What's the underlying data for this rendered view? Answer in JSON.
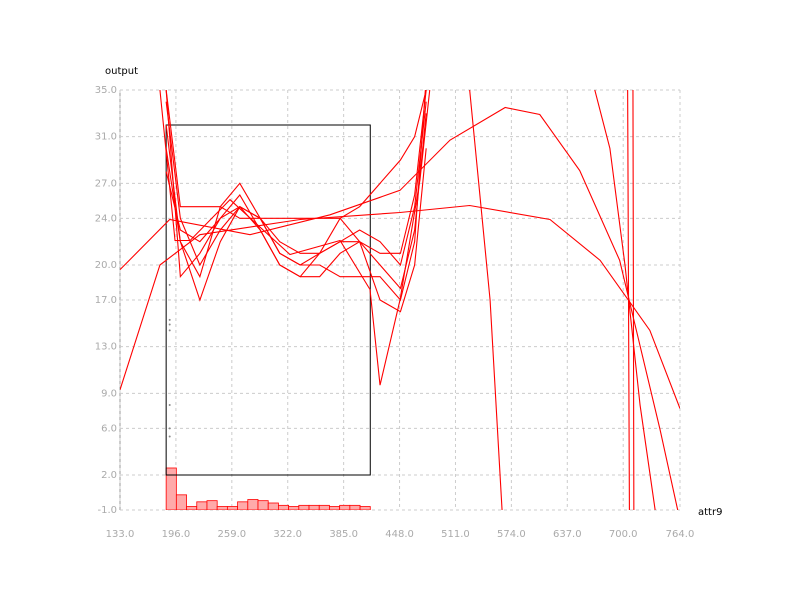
{
  "chart_data": {
    "type": "line",
    "x_label": "attr9",
    "y_label": "output",
    "xlim": [
      133,
      764
    ],
    "ylim": [
      -1,
      35
    ],
    "xticks": [
      {
        "value": 133,
        "label": "133.0"
      },
      {
        "value": 196,
        "label": "196.0"
      },
      {
        "value": 259,
        "label": "259.0"
      },
      {
        "value": 322,
        "label": "322.0"
      },
      {
        "value": 385,
        "label": "385.0"
      },
      {
        "value": 448,
        "label": "448.0"
      },
      {
        "value": 511,
        "label": "511.0"
      },
      {
        "value": 574,
        "label": "574.0"
      },
      {
        "value": 637,
        "label": "637.0"
      },
      {
        "value": 700,
        "label": "700.0"
      },
      {
        "value": 764,
        "label": "764.0"
      }
    ],
    "yticks": [
      {
        "value": -1,
        "label": "-1.0"
      },
      {
        "value": 2,
        "label": "2.0"
      },
      {
        "value": 6,
        "label": "6.0"
      },
      {
        "value": 9,
        "label": "9.0"
      },
      {
        "value": 13,
        "label": "13.0"
      },
      {
        "value": 17,
        "label": "17.0"
      },
      {
        "value": 20,
        "label": "20.0"
      },
      {
        "value": 24,
        "label": "24.0"
      },
      {
        "value": 27,
        "label": "27.0"
      },
      {
        "value": 31,
        "label": "31.0"
      },
      {
        "value": 35,
        "label": "35.0"
      }
    ],
    "grid": true,
    "line_color": "#ff0000",
    "series": [
      {
        "x": [
          133,
          178,
          223,
          336,
          448.5,
          527,
          617.5,
          674,
          730,
          764
        ],
        "values": [
          9.3,
          20.0,
          22.6,
          23.9,
          24.5,
          25.1,
          23.9,
          20.4,
          14.4,
          7.7
        ]
      },
      {
        "x": [
          133,
          189,
          279.5,
          369.6,
          448.5,
          504.8,
          567,
          606,
          651,
          696,
          741.5,
          764
        ],
        "values": [
          19.6,
          23.9,
          22.6,
          24.3,
          26.4,
          30.7,
          33.5,
          32.9,
          28.1,
          20.4,
          5.9,
          -1.9
        ]
      },
      {
        "x": [
          178,
          195,
          212,
          257,
          324.5,
          381,
          414.7,
          426,
          448.5,
          471,
          482
        ],
        "values": [
          35,
          22.1,
          22.1,
          25.6,
          20.9,
          22.1,
          17.9,
          9.7,
          17,
          27.3,
          35
        ]
      },
      {
        "x": [
          527,
          550,
          563.5
        ],
        "values": [
          35,
          17,
          -1
        ]
      },
      {
        "x": [
          668,
          685,
          702,
          719,
          736
        ],
        "values": [
          35,
          30,
          20,
          8,
          -1
        ]
      },
      {
        "x": [
          705,
          706,
          707
        ],
        "values": [
          35,
          17,
          -1
        ]
      },
      {
        "x": [
          711,
          711.5,
          712
        ],
        "values": [
          35,
          17,
          -1
        ]
      },
      {
        "x": [
          185,
          201,
          223,
          246,
          268,
          291,
          313,
          336,
          358,
          381,
          403,
          426,
          449,
          465,
          478
        ],
        "values": [
          34,
          24,
          20,
          23,
          25,
          24,
          22,
          21,
          21,
          22,
          22,
          21,
          21,
          26,
          35
        ]
      },
      {
        "x": [
          185,
          201,
          223,
          246,
          268,
          291,
          313,
          336,
          358,
          381,
          403,
          426,
          449,
          465,
          478
        ],
        "values": [
          30,
          22,
          19,
          25,
          27,
          24,
          21,
          20,
          21,
          22,
          23,
          22,
          20,
          25,
          34
        ]
      },
      {
        "x": [
          185,
          201,
          223,
          246,
          268,
          291,
          313,
          336,
          358,
          381,
          403,
          426,
          449,
          465,
          478
        ],
        "values": [
          35,
          19,
          21,
          24,
          26,
          23,
          20,
          19,
          19,
          21,
          22,
          20,
          18,
          23,
          33
        ]
      },
      {
        "x": [
          185,
          201,
          223,
          246,
          268,
          291,
          313,
          336,
          358,
          381,
          403,
          426,
          449,
          465,
          478
        ],
        "values": [
          32,
          22,
          17,
          22,
          25,
          24,
          21,
          20,
          20,
          19,
          19,
          19,
          17,
          22,
          36
        ]
      },
      {
        "x": [
          185,
          201,
          223,
          246,
          268,
          291,
          313,
          336,
          358,
          381,
          403,
          426,
          449,
          465,
          478
        ],
        "values": [
          28,
          23,
          22,
          24,
          25,
          23,
          20,
          19,
          21,
          24,
          22,
          17,
          16,
          20,
          30
        ]
      },
      {
        "x": [
          185,
          201,
          223,
          246,
          268,
          291,
          313,
          336,
          358,
          381,
          403,
          426,
          449,
          465,
          478
        ],
        "values": [
          35,
          25,
          25,
          25,
          24,
          24,
          24,
          24,
          24,
          24,
          25,
          27,
          29,
          31,
          35
        ]
      }
    ],
    "points": {
      "x": [
        189,
        189,
        189,
        189,
        189,
        189,
        189
      ],
      "values": [
        18.3,
        15.3,
        14.9,
        14.4,
        8.0,
        6.0,
        5.3
      ]
    },
    "range_box": {
      "x": [
        185,
        415
      ],
      "y": [
        2,
        32
      ]
    },
    "histogram": {
      "bins": [
        185,
        196.5,
        208,
        219.5,
        231,
        242.5,
        254,
        265.5,
        277,
        288.5,
        300,
        311.5,
        323,
        334.5,
        346,
        357.5,
        369,
        380.5,
        392,
        403.5,
        415
      ],
      "values": [
        3.6,
        1.3,
        0.3,
        0.7,
        0.8,
        0.3,
        0.3,
        0.7,
        0.9,
        0.8,
        0.6,
        0.4,
        0.3,
        0.4,
        0.4,
        0.4,
        0.3,
        0.4,
        0.4,
        0.3
      ]
    }
  }
}
